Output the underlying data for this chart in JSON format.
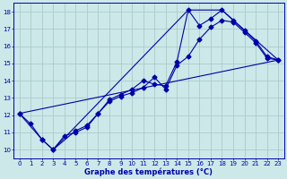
{
  "xlabel": "Graphe des températures (°C)",
  "bg_color": "#cce8e8",
  "grid_color": "#aacccc",
  "line_color": "#0000aa",
  "xlim": [
    -0.5,
    23.5
  ],
  "ylim": [
    9.5,
    18.5
  ],
  "xticks": [
    0,
    1,
    2,
    3,
    4,
    5,
    6,
    7,
    8,
    9,
    10,
    11,
    12,
    13,
    14,
    15,
    16,
    17,
    18,
    19,
    20,
    21,
    22,
    23
  ],
  "yticks": [
    10,
    11,
    12,
    13,
    14,
    15,
    16,
    17,
    18
  ],
  "line1_x": [
    0,
    1,
    2,
    3,
    4,
    5,
    6,
    7,
    8,
    9,
    10,
    11,
    12,
    13,
    14,
    15,
    16,
    17,
    18,
    19,
    20,
    21,
    22,
    23
  ],
  "line1_y": [
    12.1,
    11.5,
    10.6,
    10.0,
    10.8,
    11.0,
    11.3,
    12.1,
    12.8,
    13.1,
    13.3,
    13.6,
    14.2,
    13.5,
    14.9,
    15.4,
    16.4,
    17.1,
    17.5,
    17.4,
    16.8,
    16.2,
    15.3,
    15.2
  ],
  "line2_x": [
    0,
    2,
    3,
    5,
    6,
    7,
    8,
    9,
    10,
    11,
    12,
    13,
    14,
    15,
    16,
    17,
    18,
    19,
    20,
    21,
    22,
    23
  ],
  "line2_y": [
    12.1,
    10.6,
    10.0,
    11.1,
    11.4,
    12.1,
    12.9,
    13.2,
    13.5,
    14.0,
    13.8,
    13.7,
    15.1,
    18.1,
    17.2,
    17.6,
    18.1,
    17.5,
    16.9,
    16.3,
    15.4,
    15.2
  ],
  "line3_x": [
    0,
    23
  ],
  "line3_y": [
    12.1,
    15.2
  ],
  "line4_x": [
    3,
    15,
    18,
    23
  ],
  "line4_y": [
    10.0,
    18.1,
    18.1,
    15.2
  ]
}
